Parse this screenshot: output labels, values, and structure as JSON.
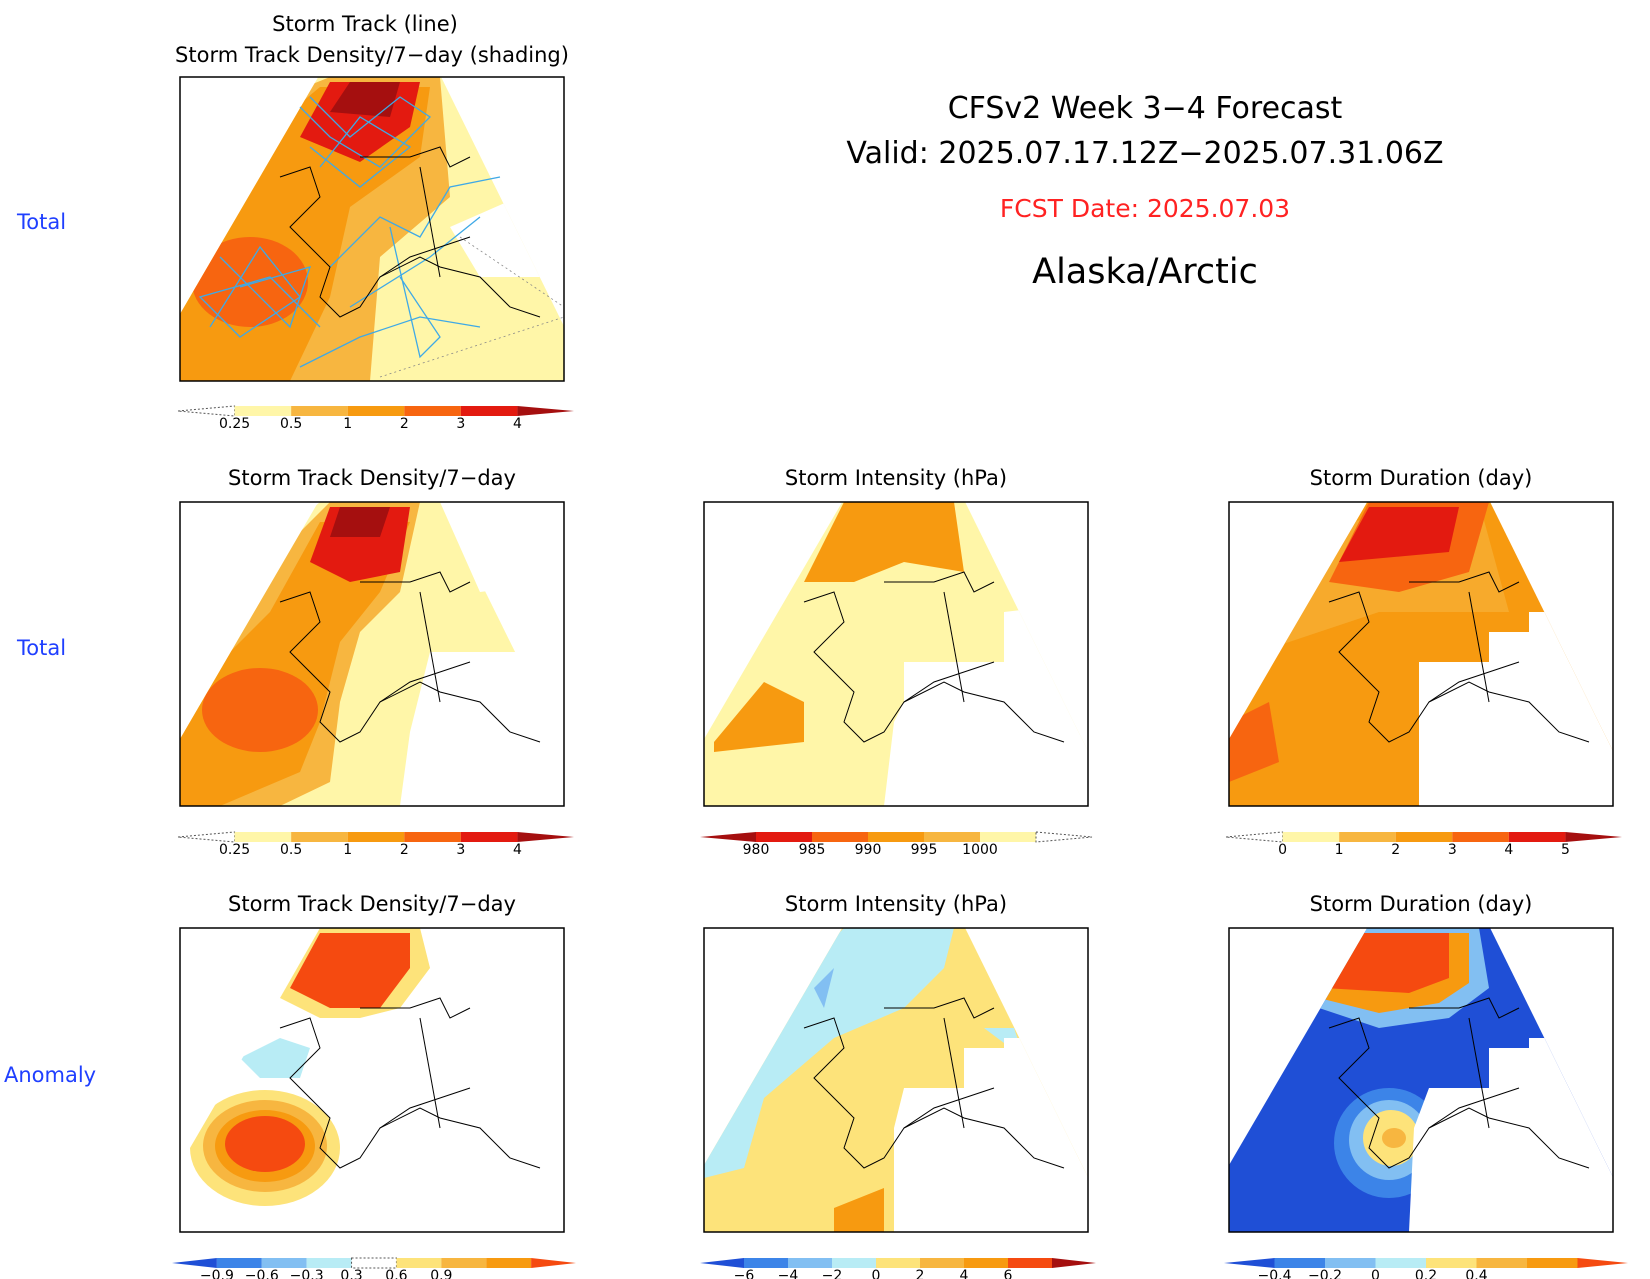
{
  "header": {
    "line1": "CFSv2  Week  3−4  Forecast",
    "line2": "Valid:  2025.07.17.12Z−2025.07.31.06Z",
    "fcst": "FCST  Date:  2025.07.03",
    "region": "Alaska/Arctic",
    "fcst_color": "#ff2222"
  },
  "row_labels": {
    "row1": "Total",
    "row2": "Total",
    "row3": "Anomaly",
    "color": "#1f3fff"
  },
  "panels": {
    "track": {
      "title1": "Storm  Track  (line)",
      "title2": "Storm  Track  Density/7−day  (shading)"
    },
    "density_total": {
      "title": "Storm  Track  Density/7−day"
    },
    "intensity_total": {
      "title": "Storm  Intensity  (hPa)"
    },
    "duration_total": {
      "title": "Storm  Duration  (day)"
    },
    "density_anom": {
      "title": "Storm  Track  Density/7−day"
    },
    "intensity_anom": {
      "title": "Storm  Intensity  (hPa)"
    },
    "duration_anom": {
      "title": "Storm  Duration  (day)"
    }
  },
  "colorbars": {
    "density": {
      "colors": [
        "#ffffff",
        "#fff6a8",
        "#f7b640",
        "#f79a10",
        "#f76510",
        "#e31a10",
        "#a50f0f"
      ],
      "labels": [
        "0.25",
        "0.5",
        "1",
        "2",
        "3",
        "4"
      ]
    },
    "intensity": {
      "colors": [
        "#a50f0f",
        "#e31a10",
        "#f76510",
        "#f79a10",
        "#f7b640",
        "#fff6a8",
        "#ffffff"
      ],
      "labels": [
        "980",
        "985",
        "990",
        "995",
        "1000"
      ]
    },
    "duration": {
      "colors": [
        "#ffffff",
        "#fff6a8",
        "#f7b640",
        "#f79a10",
        "#f76510",
        "#e31a10",
        "#a50f0f"
      ],
      "labels": [
        "0",
        "1",
        "2",
        "3",
        "4",
        "5"
      ]
    },
    "density_anom": {
      "colors": [
        "#1f4fd6",
        "#3c84e8",
        "#82bff2",
        "#b8ecf5",
        "#ffffff",
        "#fde37a",
        "#f7b640",
        "#f79a10",
        "#f54a10"
      ],
      "labels": [
        "−0.9",
        "−0.6",
        "−0.3",
        "0.3",
        "0.6",
        "0.9"
      ]
    },
    "intensity_anom": {
      "colors": [
        "#1f4fd6",
        "#3c84e8",
        "#82bff2",
        "#b8ecf5",
        "#fde37a",
        "#f7b640",
        "#f79a10",
        "#f54a10",
        "#a50f0f"
      ],
      "labels": [
        "−6",
        "−4",
        "−2",
        "0",
        "2",
        "4",
        "6"
      ]
    },
    "duration_anom": {
      "colors": [
        "#1f4fd6",
        "#3c84e8",
        "#82bff2",
        "#b8ecf5",
        "#fde37a",
        "#f7b640",
        "#f79a10",
        "#f54a10"
      ],
      "labels": [
        "−0.4",
        "−0.2",
        "0",
        "0.2",
        "0.4"
      ]
    }
  }
}
